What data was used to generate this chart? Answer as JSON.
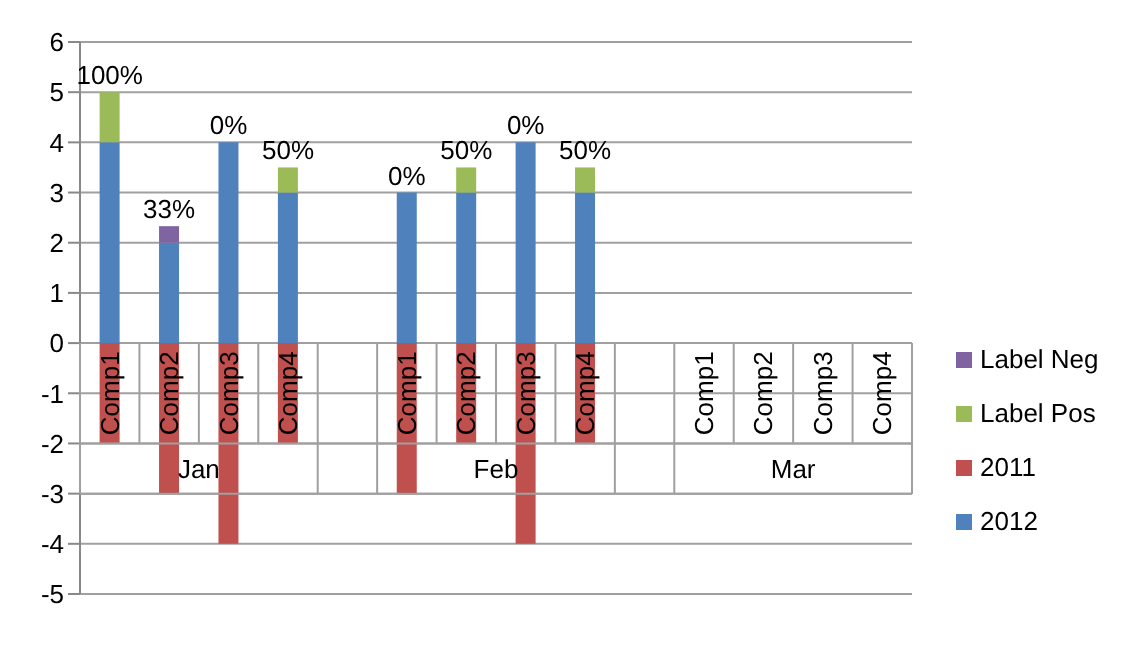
{
  "chart_data": {
    "type": "bar",
    "stacked": true,
    "categories": [
      "Comp1",
      "Comp2",
      "Comp3",
      "Comp4",
      null,
      "Comp1",
      "Comp2",
      "Comp3",
      "Comp4",
      null,
      "Comp1",
      "Comp2",
      "Comp3",
      "Comp4"
    ],
    "annotations": [
      "Jan",
      "Feb",
      "Mar"
    ],
    "series": [
      {
        "name": "2012",
        "color": "#4f81bd",
        "values": [
          4,
          2,
          4,
          3,
          null,
          3,
          3,
          4,
          3,
          null,
          null,
          null,
          null,
          null
        ]
      },
      {
        "name": "2011",
        "color": "#c0504d",
        "values": [
          -2,
          -3,
          -4,
          -2,
          null,
          -3,
          -2,
          -4,
          -2,
          null,
          null,
          null,
          null,
          null
        ]
      },
      {
        "name": "Label Pos",
        "color": "#9bbb59",
        "values": [
          1,
          null,
          0,
          0.5,
          null,
          0,
          0.5,
          0,
          0.5,
          null,
          null,
          null,
          null,
          null
        ],
        "value_labels": [
          "100%",
          null,
          "0%",
          "50%",
          null,
          "0%",
          "50%",
          "0%",
          "50%",
          null,
          null,
          null,
          null,
          null
        ]
      },
      {
        "name": "Label Neg",
        "color": "#8064a2",
        "values": [
          null,
          0.33,
          null,
          null,
          null,
          null,
          null,
          null,
          null,
          null,
          null,
          null,
          null,
          null
        ],
        "value_labels": [
          null,
          "33%",
          null,
          null,
          null,
          null,
          null,
          null,
          null,
          null,
          null,
          null,
          null,
          null
        ]
      }
    ],
    "ylim": [
      -5,
      6
    ],
    "yticks": [
      -5,
      -4,
      -3,
      -2,
      -1,
      0,
      1,
      2,
      3,
      4,
      5,
      6
    ],
    "grid": "y",
    "legend": "right"
  }
}
